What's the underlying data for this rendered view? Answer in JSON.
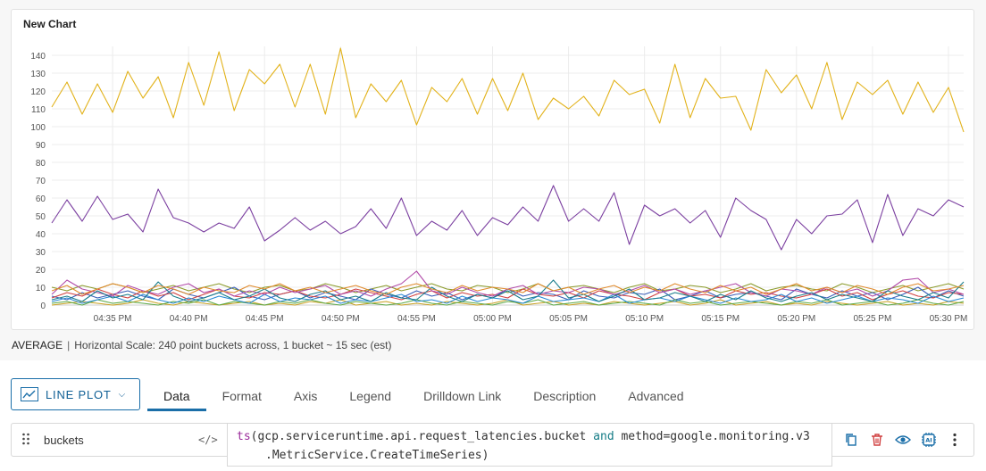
{
  "chart": {
    "title": "New Chart",
    "summary_aggregate": "AVERAGE",
    "summary_separator": "|",
    "summary_scale": "Horizontal Scale: 240 point buckets across, 1 bucket ~ 15 sec (est)"
  },
  "chart_data": {
    "type": "line",
    "title": "New Chart",
    "ylim": [
      0,
      145
    ],
    "yticks": [
      0,
      10,
      20,
      30,
      40,
      50,
      60,
      70,
      80,
      90,
      100,
      110,
      120,
      130,
      140
    ],
    "xticks": [
      "04:35 PM",
      "04:40 PM",
      "04:45 PM",
      "04:50 PM",
      "04:55 PM",
      "05:00 PM",
      "05:05 PM",
      "05:10 PM",
      "05:15 PM",
      "05:20 PM",
      "05:25 PM",
      "05:30 PM"
    ],
    "x_start": "04:31 PM",
    "x_end": "05:31 PM",
    "grid": true,
    "series": [
      {
        "color": "#e2b21a",
        "values": [
          111,
          125,
          107,
          124,
          108,
          131,
          116,
          128,
          105,
          136,
          112,
          142,
          109,
          132,
          124,
          135,
          111,
          135,
          107,
          144,
          105,
          124,
          114,
          126,
          101,
          122,
          114,
          127,
          107,
          127,
          109,
          130,
          104,
          116,
          110,
          117,
          106,
          126,
          118,
          121,
          102,
          135,
          105,
          127,
          116,
          117,
          98,
          132,
          119,
          129,
          110,
          136,
          104,
          125,
          118,
          126,
          107,
          125,
          108,
          122,
          97
        ]
      },
      {
        "color": "#7b3fa0",
        "values": [
          46,
          59,
          47,
          61,
          48,
          51,
          41,
          65,
          49,
          46,
          41,
          46,
          43,
          55,
          36,
          42,
          49,
          42,
          47,
          40,
          44,
          54,
          43,
          60,
          39,
          47,
          42,
          53,
          39,
          49,
          45,
          55,
          47,
          67,
          47,
          54,
          47,
          63,
          34,
          56,
          50,
          54,
          46,
          53,
          38,
          60,
          53,
          48,
          31,
          48,
          40,
          50,
          51,
          59,
          35,
          62,
          39,
          54,
          50,
          59,
          55
        ]
      },
      {
        "color": "#e08a2c",
        "values": [
          8,
          11,
          6,
          9,
          12,
          10,
          7,
          11,
          9,
          6,
          10,
          8,
          7,
          11,
          9,
          12,
          8,
          10,
          7,
          9,
          11,
          8,
          6,
          10,
          12,
          9,
          7,
          11,
          8,
          10,
          9,
          7,
          12,
          8,
          10,
          6,
          9,
          11,
          7,
          10,
          8,
          12,
          9,
          7,
          11,
          8,
          10,
          6,
          9,
          12,
          8,
          10,
          7,
          11,
          9,
          6,
          10,
          12,
          8,
          9,
          11
        ]
      },
      {
        "color": "#1b7e8c",
        "values": [
          3,
          5,
          2,
          8,
          4,
          6,
          3,
          13,
          5,
          2,
          4,
          7,
          3,
          5,
          9,
          4,
          2,
          6,
          8,
          3,
          5,
          2,
          7,
          4,
          3,
          10,
          5,
          2,
          6,
          4,
          8,
          3,
          5,
          14,
          4,
          6,
          2,
          5,
          9,
          3,
          4,
          7,
          5,
          2,
          6,
          3,
          8,
          4,
          2,
          5,
          7,
          3,
          6,
          4,
          2,
          8,
          5,
          3,
          7,
          4,
          13
        ]
      },
      {
        "color": "#b14aa8",
        "values": [
          6,
          14,
          9,
          7,
          5,
          11,
          8,
          6,
          10,
          12,
          7,
          9,
          5,
          8,
          6,
          10,
          7,
          9,
          11,
          6,
          8,
          5,
          9,
          12,
          19,
          8,
          6,
          10,
          7,
          5,
          9,
          11,
          6,
          8,
          7,
          10,
          9,
          6,
          8,
          11,
          7,
          9,
          6,
          8,
          10,
          12,
          7,
          5,
          9,
          8,
          6,
          10,
          7,
          9,
          5,
          8,
          14,
          15,
          7,
          9,
          6
        ]
      },
      {
        "color": "#2a8ad6",
        "values": [
          2,
          4,
          1,
          3,
          5,
          2,
          6,
          3,
          1,
          4,
          2,
          5,
          3,
          1,
          6,
          2,
          4,
          3,
          5,
          1,
          3,
          2,
          4,
          6,
          2,
          3,
          1,
          5,
          2,
          4,
          3,
          1,
          5,
          2,
          3,
          4,
          2,
          6,
          1,
          3,
          4,
          2,
          5,
          3,
          1,
          4,
          2,
          3,
          6,
          2,
          4,
          1,
          3,
          5,
          2,
          4,
          3,
          1,
          5,
          2,
          4
        ]
      },
      {
        "color": "#5aa846",
        "values": [
          1,
          2,
          0,
          3,
          1,
          2,
          1,
          0,
          2,
          1,
          3,
          0,
          2,
          1,
          0,
          2,
          1,
          3,
          1,
          0,
          2,
          1,
          0,
          1,
          3,
          1,
          0,
          2,
          1,
          0,
          2,
          1,
          3,
          0,
          1,
          2,
          0,
          1,
          2,
          1,
          0,
          3,
          1,
          2,
          0,
          1,
          2,
          1,
          0,
          2,
          1,
          3,
          0,
          1,
          2,
          0,
          1,
          3,
          1,
          0,
          2
        ]
      },
      {
        "color": "#d04040",
        "values": [
          4,
          7,
          5,
          9,
          6,
          4,
          8,
          5,
          7,
          3,
          6,
          9,
          5,
          4,
          7,
          6,
          8,
          5,
          4,
          6,
          9,
          7,
          5,
          3,
          6,
          8,
          4,
          7,
          5,
          6,
          4,
          9,
          6,
          5,
          7,
          4,
          8,
          6,
          5,
          3,
          7,
          9,
          5,
          6,
          4,
          8,
          6,
          7,
          5,
          4,
          6,
          9,
          5,
          7,
          3,
          6,
          8,
          5,
          4,
          7,
          6
        ]
      },
      {
        "color": "#c8a020",
        "values": [
          0,
          1,
          2,
          1,
          0,
          1,
          3,
          1,
          0,
          2,
          1,
          0,
          1,
          2,
          0,
          1,
          0,
          2,
          1,
          3,
          0,
          1,
          2,
          0,
          1,
          0,
          2,
          1,
          0,
          1,
          3,
          0,
          1,
          2,
          0,
          1,
          0,
          2,
          1,
          0,
          1,
          2,
          0,
          1,
          3,
          0,
          1,
          2,
          0,
          1,
          0,
          2,
          1,
          0,
          1,
          2,
          0,
          1,
          0,
          2,
          1
        ]
      },
      {
        "color": "#3c5fb8",
        "values": [
          5,
          3,
          7,
          4,
          6,
          8,
          5,
          3,
          9,
          6,
          4,
          7,
          10,
          5,
          3,
          6,
          8,
          4,
          7,
          5,
          3,
          9,
          6,
          4,
          8,
          5,
          7,
          3,
          6,
          4,
          9,
          5,
          7,
          6,
          3,
          8,
          5,
          4,
          7,
          6,
          9,
          3,
          5,
          8,
          4,
          6,
          7,
          5,
          3,
          9,
          6,
          4,
          8,
          5,
          7,
          3,
          6,
          10,
          4,
          8,
          5
        ]
      },
      {
        "color": "#8a9a2a",
        "values": [
          10,
          8,
          11,
          9,
          12,
          10,
          7,
          9,
          11,
          8,
          10,
          12,
          9,
          7,
          10,
          11,
          8,
          9,
          12,
          10,
          7,
          9,
          11,
          8,
          10,
          12,
          9,
          8,
          11,
          10,
          7,
          9,
          12,
          8,
          10,
          11,
          9,
          7,
          10,
          12,
          8,
          9,
          11,
          10,
          7,
          9,
          12,
          8,
          10,
          11,
          9,
          8,
          12,
          10,
          7,
          9,
          11,
          8,
          10,
          12,
          9
        ]
      }
    ]
  },
  "toolbar": {
    "plot_type_label": "LINE PLOT",
    "plot_icon": "line-chart-icon",
    "caret_icon": "chevron-down-icon"
  },
  "tabs": [
    {
      "label": "Data",
      "active": true
    },
    {
      "label": "Format"
    },
    {
      "label": "Axis"
    },
    {
      "label": "Legend"
    },
    {
      "label": "Drilldown Link"
    },
    {
      "label": "Description"
    },
    {
      "label": "Advanced"
    }
  ],
  "query": {
    "name": "buckets",
    "code_icon": "</>",
    "fn": "ts",
    "part1": "(gcp.serviceruntime.api.request_latencies.bucket ",
    "kw": "and",
    "part2": " method=google.monitoring.v3",
    "line2": ".MetricService.CreateTimeSeries)",
    "actions": [
      "copy-icon",
      "delete-icon",
      "eye-icon",
      "ai-icon",
      "more-icon"
    ]
  },
  "colors": {
    "accent": "#1a6ea8",
    "delete": "#d04040"
  }
}
